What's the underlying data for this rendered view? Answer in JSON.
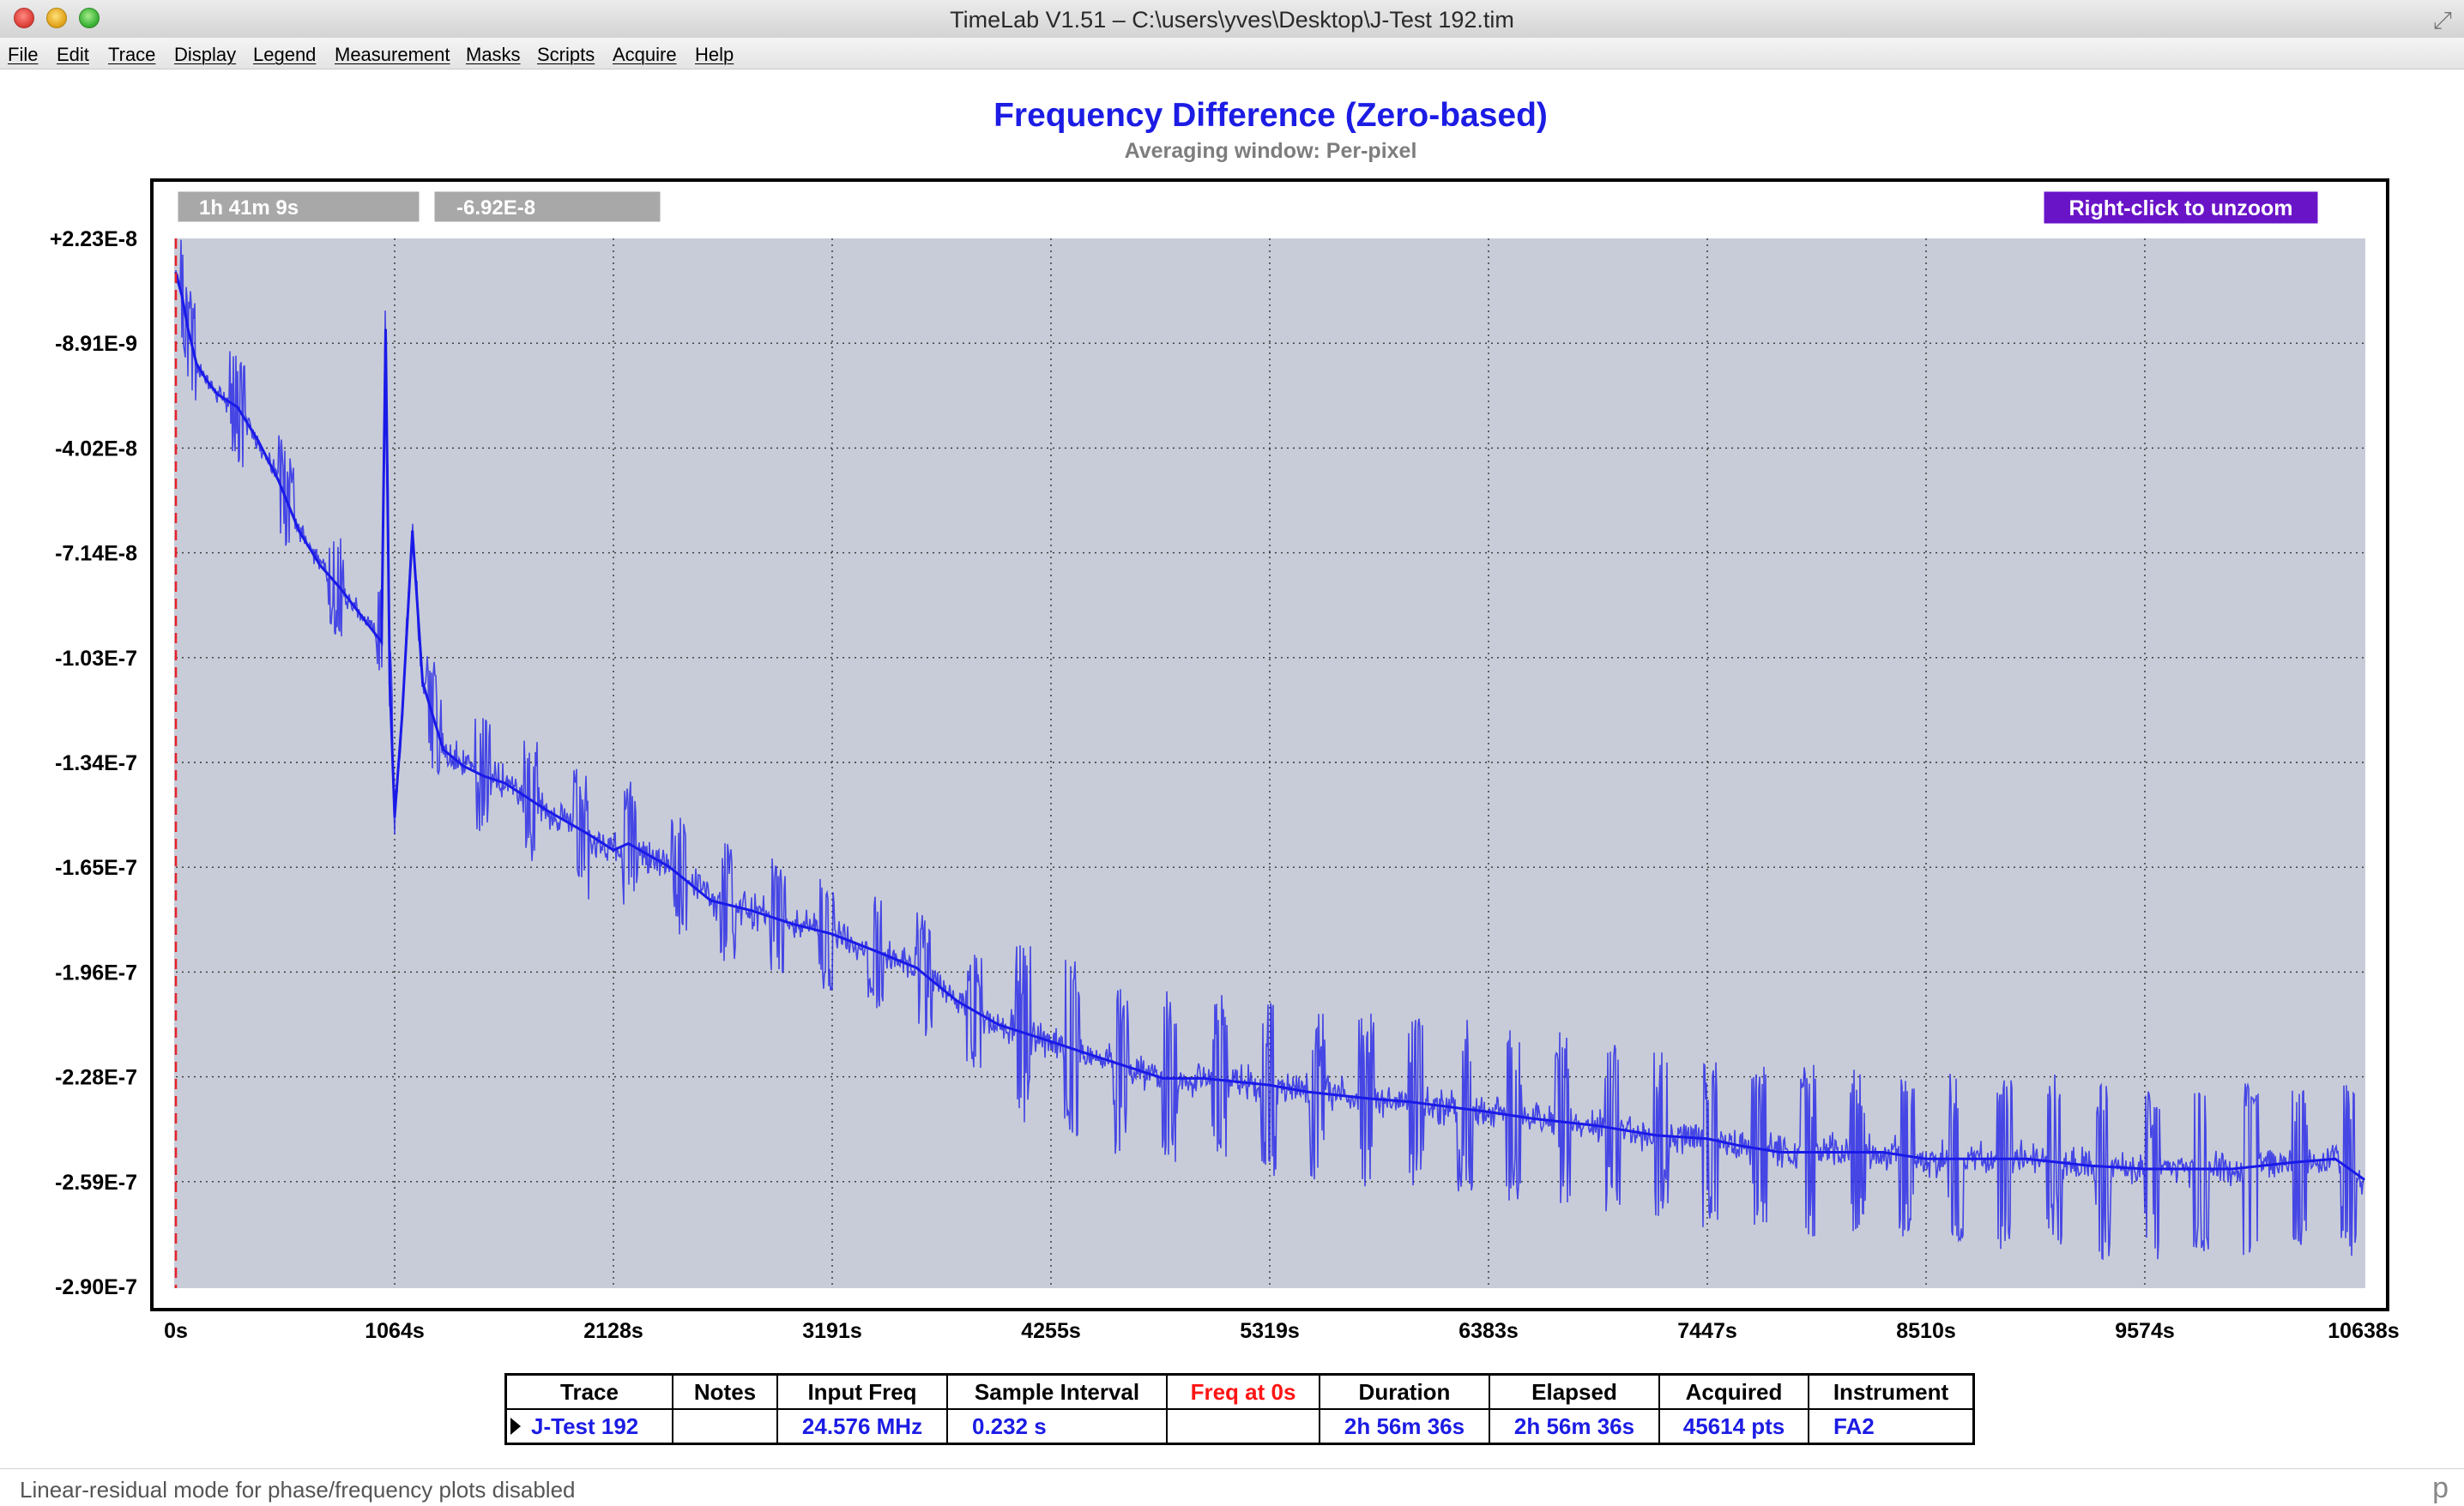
{
  "window": {
    "title": "TimeLab V1.51 – C:\\users\\yves\\Desktop\\J-Test 192.tim"
  },
  "menu": [
    "File",
    "Edit",
    "Trace",
    "Display",
    "Legend",
    "Measurement",
    "Masks",
    "Scripts",
    "Acquire",
    "Help"
  ],
  "plot": {
    "title": "Frequency Difference (Zero-based)",
    "subtitle": "Averaging window: Per-pixel",
    "cursor_time": "1h 41m 9s",
    "cursor_value": "-6.92E-8",
    "unzoom_label": "Right-click to unzoom",
    "colors": {
      "trace": "#1a1ae8",
      "plot_bg": "#c8ccd8",
      "marker": "#e8202a",
      "unzoom_bg": "#6a14c8"
    }
  },
  "chart_data": {
    "type": "line",
    "title": "Frequency Difference (Zero-based)",
    "subtitle": "Averaging window: Per-pixel",
    "xlabel": "",
    "ylabel": "",
    "xlim": [
      0,
      10638
    ],
    "ylim": [
      -2.9e-07,
      2.23e-08
    ],
    "x_tick_labels": [
      "0s",
      "1064s",
      "2128s",
      "3191s",
      "4255s",
      "5319s",
      "6383s",
      "7447s",
      "8510s",
      "9574s",
      "10638s"
    ],
    "y_tick_labels": [
      "+2.23E-8",
      "-8.91E-9",
      "-4.02E-8",
      "-7.14E-8",
      "-1.03E-7",
      "-1.34E-7",
      "-1.65E-7",
      "-1.96E-7",
      "-2.28E-7",
      "-2.59E-7",
      "-2.90E-7"
    ],
    "grid": true,
    "series": [
      {
        "name": "J-Test 192",
        "x": [
          0,
          30,
          60,
          100,
          150,
          200,
          300,
          400,
          500,
          600,
          700,
          800,
          900,
          1000,
          1020,
          1040,
          1064,
          1100,
          1150,
          1200,
          1300,
          1400,
          1500,
          1600,
          1800,
          2000,
          2128,
          2200,
          2400,
          2600,
          2800,
          3000,
          3191,
          3400,
          3600,
          3800,
          4000,
          4255,
          4400,
          4600,
          4800,
          5000,
          5319,
          5500,
          5800,
          6000,
          6383,
          6600,
          6900,
          7200,
          7447,
          7600,
          7800,
          8000,
          8300,
          8510,
          8800,
          9000,
          9300,
          9574,
          9800,
          10000,
          10300,
          10500,
          10638
        ],
        "y": [
          1.2e-08,
          5e-09,
          -5e-09,
          -1.5e-08,
          -2e-08,
          -2.4e-08,
          -2.8e-08,
          -3.8e-08,
          -5e-08,
          -6.5e-08,
          -7.5e-08,
          -8.2e-08,
          -9e-08,
          -9.8e-08,
          -5e-09,
          -1.1e-07,
          -1.5e-07,
          -1.2e-07,
          -6.5e-08,
          -1.1e-07,
          -1.3e-07,
          -1.35e-07,
          -1.38e-07,
          -1.4e-07,
          -1.48e-07,
          -1.55e-07,
          -1.6e-07,
          -1.58e-07,
          -1.65e-07,
          -1.75e-07,
          -1.78e-07,
          -1.82e-07,
          -1.85e-07,
          -1.9e-07,
          -1.95e-07,
          -2.05e-07,
          -2.12e-07,
          -2.17e-07,
          -2.2e-07,
          -2.24e-07,
          -2.28e-07,
          -2.28e-07,
          -2.3e-07,
          -2.32e-07,
          -2.34e-07,
          -2.35e-07,
          -2.38e-07,
          -2.4e-07,
          -2.42e-07,
          -2.45e-07,
          -2.46e-07,
          -2.48e-07,
          -2.5e-07,
          -2.5e-07,
          -2.5e-07,
          -2.52e-07,
          -2.52e-07,
          -2.52e-07,
          -2.54e-07,
          -2.55e-07,
          -2.55e-07,
          -2.55e-07,
          -2.53e-07,
          -2.52e-07,
          -2.58e-07
        ]
      }
    ]
  },
  "table": {
    "headers": [
      "Trace",
      "Notes",
      "Input Freq",
      "Sample Interval",
      "Freq at 0s",
      "Duration",
      "Elapsed",
      "Acquired",
      "Instrument"
    ],
    "row": [
      "J-Test 192",
      "",
      "24.576 MHz",
      "0.232 s",
      "",
      "2h 56m 36s",
      "2h 56m 36s",
      "45614 pts",
      "FA2"
    ]
  },
  "status": {
    "text": "Linear-residual mode for phase/frequency plots disabled",
    "corner": "p"
  }
}
